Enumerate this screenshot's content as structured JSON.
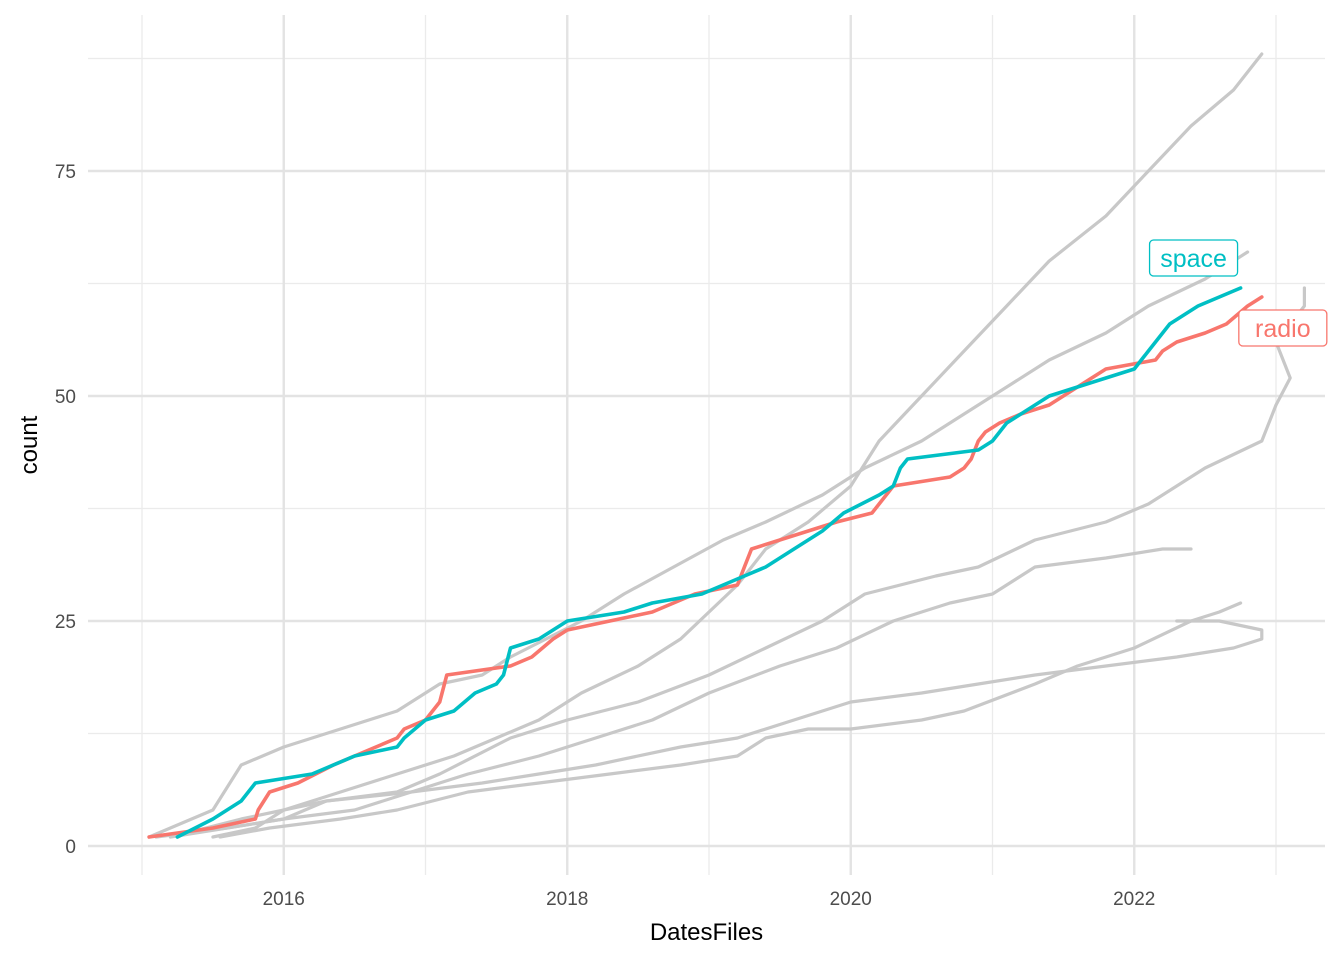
{
  "chart_data": {
    "type": "line",
    "title": "",
    "xlabel": "DatesFiles",
    "ylabel": "count",
    "xlim": [
      2015.0,
      2023.4
    ],
    "ylim": [
      -3,
      88
    ],
    "x_ticks": [
      2016,
      2018,
      2020,
      2022
    ],
    "x_tick_labels": [
      "2016",
      "2018",
      "2020",
      "2022"
    ],
    "y_ticks": [
      0,
      25,
      50,
      75
    ],
    "y_tick_labels": [
      "0",
      "25",
      "50",
      "75"
    ],
    "grid": true,
    "legend": "none",
    "colors": {
      "highlight_1": "#F8766D",
      "highlight_2": "#00BFC4",
      "background": "#C8C8C8"
    },
    "series": [
      {
        "values": [
          [
            2015.55,
            1
          ],
          [
            2015.9,
            2
          ],
          [
            2016.4,
            3
          ],
          [
            2016.8,
            4
          ],
          [
            2017.3,
            6
          ],
          [
            2017.8,
            7
          ],
          [
            2018.3,
            8
          ],
          [
            2018.8,
            9
          ],
          [
            2019.2,
            10
          ],
          [
            2019.4,
            12
          ],
          [
            2019.7,
            13
          ],
          [
            2020.0,
            13
          ],
          [
            2020.5,
            14
          ],
          [
            2020.8,
            15
          ],
          [
            2021.3,
            18
          ],
          [
            2021.6,
            20
          ],
          [
            2022.0,
            22
          ],
          [
            2022.4,
            25
          ],
          [
            2022.6,
            26
          ],
          [
            2022.75,
            27
          ]
        ]
      },
      {
        "values": [
          [
            2015.2,
            1
          ],
          [
            2015.7,
            3
          ],
          [
            2016.0,
            4
          ],
          [
            2016.3,
            5
          ],
          [
            2016.9,
            6
          ],
          [
            2017.4,
            7
          ],
          [
            2017.8,
            8
          ],
          [
            2018.2,
            9
          ],
          [
            2018.8,
            11
          ],
          [
            2019.2,
            12
          ],
          [
            2019.6,
            14
          ],
          [
            2020.0,
            16
          ],
          [
            2020.5,
            17
          ],
          [
            2020.9,
            18
          ],
          [
            2021.3,
            19
          ],
          [
            2021.8,
            20
          ],
          [
            2022.3,
            21
          ],
          [
            2022.7,
            22
          ],
          [
            2022.9,
            23
          ],
          [
            2022.9,
            24
          ],
          [
            2022.6,
            25
          ],
          [
            2022.3,
            25
          ]
        ]
      },
      {
        "values": [
          [
            2015.2,
            1
          ],
          [
            2015.6,
            2
          ],
          [
            2016.0,
            3
          ],
          [
            2016.5,
            4
          ],
          [
            2016.9,
            6
          ],
          [
            2017.3,
            8
          ],
          [
            2017.8,
            10
          ],
          [
            2018.2,
            12
          ],
          [
            2018.6,
            14
          ],
          [
            2019.0,
            17
          ],
          [
            2019.5,
            20
          ],
          [
            2019.9,
            22
          ],
          [
            2020.3,
            25
          ],
          [
            2020.7,
            27
          ],
          [
            2021.0,
            28
          ],
          [
            2021.3,
            31
          ],
          [
            2021.8,
            32
          ],
          [
            2022.2,
            33
          ],
          [
            2022.4,
            33
          ]
        ]
      },
      {
        "values": [
          [
            2015.1,
            1
          ],
          [
            2015.6,
            2
          ],
          [
            2016.0,
            3
          ],
          [
            2016.3,
            5
          ],
          [
            2016.8,
            6
          ],
          [
            2017.1,
            8
          ],
          [
            2017.6,
            12
          ],
          [
            2018.0,
            14
          ],
          [
            2018.5,
            16
          ],
          [
            2019.0,
            19
          ],
          [
            2019.4,
            22
          ],
          [
            2019.8,
            25
          ],
          [
            2020.1,
            28
          ],
          [
            2020.6,
            30
          ],
          [
            2020.9,
            31
          ],
          [
            2021.3,
            34
          ],
          [
            2021.8,
            36
          ],
          [
            2022.1,
            38
          ],
          [
            2022.5,
            42
          ],
          [
            2022.9,
            45
          ],
          [
            2023.0,
            49
          ],
          [
            2023.1,
            52
          ],
          [
            2023.0,
            56
          ],
          [
            2023.2,
            60
          ],
          [
            2023.2,
            62
          ]
        ]
      },
      {
        "values": [
          [
            2015.05,
            1
          ],
          [
            2015.5,
            4
          ],
          [
            2015.7,
            9
          ],
          [
            2016.0,
            11
          ],
          [
            2016.4,
            13
          ],
          [
            2016.8,
            15
          ],
          [
            2017.1,
            18
          ],
          [
            2017.4,
            19
          ],
          [
            2017.6,
            21
          ],
          [
            2017.85,
            23
          ],
          [
            2018.1,
            25
          ],
          [
            2018.4,
            28
          ],
          [
            2018.75,
            31
          ],
          [
            2019.1,
            34
          ],
          [
            2019.4,
            36
          ],
          [
            2019.8,
            39
          ],
          [
            2020.1,
            42
          ],
          [
            2020.5,
            45
          ],
          [
            2020.8,
            48
          ],
          [
            2021.1,
            51
          ],
          [
            2021.4,
            54
          ],
          [
            2021.8,
            57
          ],
          [
            2022.1,
            60
          ],
          [
            2022.5,
            63
          ],
          [
            2022.8,
            66
          ]
        ]
      },
      {
        "values": [
          [
            2015.5,
            1
          ],
          [
            2015.8,
            2
          ],
          [
            2016.0,
            4
          ],
          [
            2016.4,
            6
          ],
          [
            2016.8,
            8
          ],
          [
            2017.2,
            10
          ],
          [
            2017.5,
            12
          ],
          [
            2017.8,
            14
          ],
          [
            2018.1,
            17
          ],
          [
            2018.5,
            20
          ],
          [
            2018.8,
            23
          ],
          [
            2019.0,
            26
          ],
          [
            2019.2,
            29
          ],
          [
            2019.4,
            33
          ],
          [
            2019.7,
            36
          ],
          [
            2020.0,
            40
          ],
          [
            2020.2,
            45
          ],
          [
            2020.5,
            50
          ],
          [
            2020.8,
            55
          ],
          [
            2021.1,
            60
          ],
          [
            2021.4,
            65
          ],
          [
            2021.8,
            70
          ],
          [
            2022.1,
            75
          ],
          [
            2022.4,
            80
          ],
          [
            2022.7,
            84
          ],
          [
            2022.9,
            88
          ]
        ]
      },
      {
        "name": "radio",
        "values": [
          [
            2015.05,
            1
          ],
          [
            2015.5,
            2
          ],
          [
            2015.8,
            3
          ],
          [
            2015.82,
            4
          ],
          [
            2015.9,
            6
          ],
          [
            2016.1,
            7
          ],
          [
            2016.35,
            9
          ],
          [
            2016.8,
            12
          ],
          [
            2016.85,
            13
          ],
          [
            2017.0,
            14
          ],
          [
            2017.1,
            16
          ],
          [
            2017.15,
            19
          ],
          [
            2017.6,
            20
          ],
          [
            2017.75,
            21
          ],
          [
            2017.9,
            23
          ],
          [
            2018.0,
            24
          ],
          [
            2018.3,
            25
          ],
          [
            2018.6,
            26
          ],
          [
            2018.9,
            28
          ],
          [
            2019.2,
            29
          ],
          [
            2019.25,
            31
          ],
          [
            2019.3,
            33
          ],
          [
            2019.7,
            35
          ],
          [
            2019.9,
            36
          ],
          [
            2020.15,
            37
          ],
          [
            2020.2,
            38
          ],
          [
            2020.25,
            39
          ],
          [
            2020.3,
            40
          ],
          [
            2020.7,
            41
          ],
          [
            2020.8,
            42
          ],
          [
            2020.85,
            43
          ],
          [
            2020.9,
            45
          ],
          [
            2020.95,
            46
          ],
          [
            2021.05,
            47
          ],
          [
            2021.2,
            48
          ],
          [
            2021.4,
            49
          ],
          [
            2021.6,
            51
          ],
          [
            2021.8,
            53
          ],
          [
            2022.15,
            54
          ],
          [
            2022.2,
            55
          ],
          [
            2022.3,
            56
          ],
          [
            2022.5,
            57
          ],
          [
            2022.65,
            58
          ],
          [
            2022.8,
            60
          ],
          [
            2022.9,
            61
          ]
        ]
      },
      {
        "name": "space",
        "values": [
          [
            2015.25,
            1
          ],
          [
            2015.5,
            3
          ],
          [
            2015.7,
            5
          ],
          [
            2015.8,
            7
          ],
          [
            2016.2,
            8
          ],
          [
            2016.5,
            10
          ],
          [
            2016.8,
            11
          ],
          [
            2016.85,
            12
          ],
          [
            2017.0,
            14
          ],
          [
            2017.2,
            15
          ],
          [
            2017.35,
            17
          ],
          [
            2017.5,
            18
          ],
          [
            2017.55,
            19
          ],
          [
            2017.6,
            22
          ],
          [
            2017.8,
            23
          ],
          [
            2018.0,
            25
          ],
          [
            2018.4,
            26
          ],
          [
            2018.6,
            27
          ],
          [
            2018.95,
            28
          ],
          [
            2019.1,
            29
          ],
          [
            2019.25,
            30
          ],
          [
            2019.4,
            31
          ],
          [
            2019.6,
            33
          ],
          [
            2019.8,
            35
          ],
          [
            2019.95,
            37
          ],
          [
            2020.2,
            39
          ],
          [
            2020.3,
            40
          ],
          [
            2020.35,
            42
          ],
          [
            2020.4,
            43
          ],
          [
            2020.9,
            44
          ],
          [
            2021.0,
            45
          ],
          [
            2021.1,
            47
          ],
          [
            2021.2,
            48
          ],
          [
            2021.4,
            50
          ],
          [
            2021.6,
            51
          ],
          [
            2021.8,
            52
          ],
          [
            2022.0,
            53
          ],
          [
            2022.05,
            54
          ],
          [
            2022.1,
            55
          ],
          [
            2022.15,
            56
          ],
          [
            2022.25,
            58
          ],
          [
            2022.45,
            60
          ],
          [
            2022.6,
            61
          ],
          [
            2022.75,
            62
          ]
        ]
      }
    ],
    "annotations": [
      {
        "text": "space",
        "series": "space",
        "color": "#00BFC4"
      },
      {
        "text": "radio",
        "series": "radio",
        "color": "#F8766D"
      }
    ]
  }
}
